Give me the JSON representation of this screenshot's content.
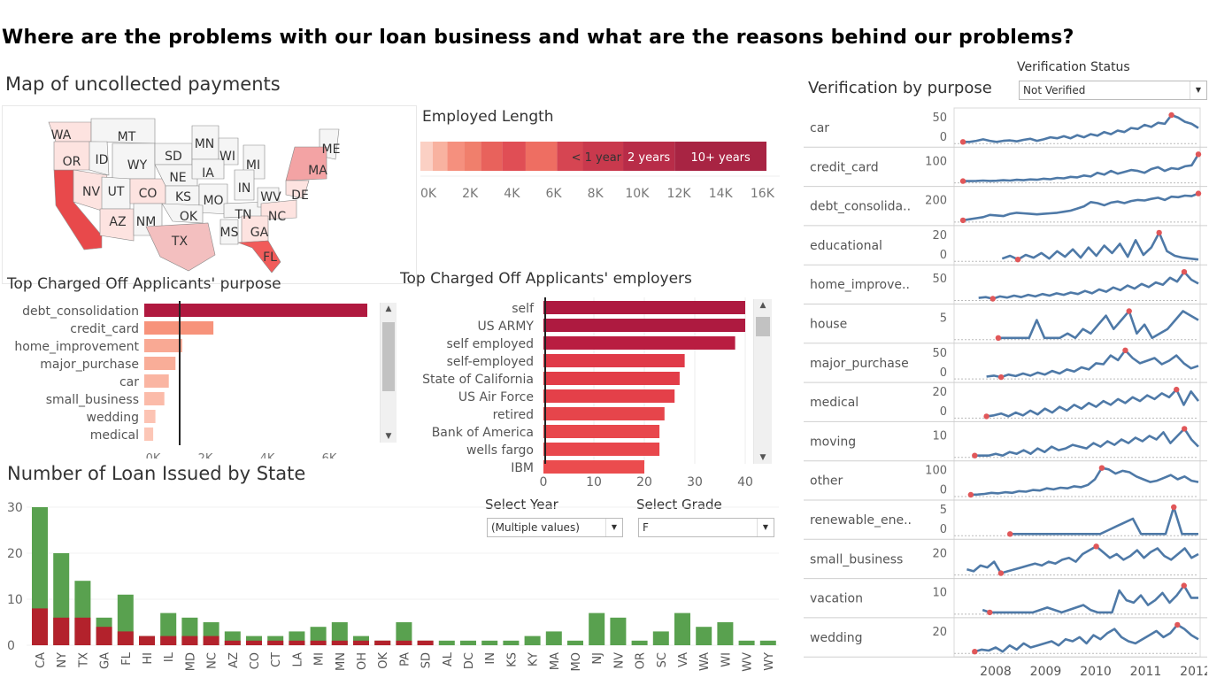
{
  "title": "Where are the problems with our loan business and what are the reasons behind our problems?",
  "map": {
    "title": "Map of uncollected payments",
    "state_labels": [
      "WA",
      "MT",
      "OR",
      "ID",
      "WY",
      "SD",
      "MN",
      "WI",
      "MI",
      "ME",
      "NV",
      "UT",
      "CO",
      "NE",
      "IA",
      "MA",
      "DE",
      "KS",
      "MO",
      "IN",
      "AZ",
      "NM",
      "OK",
      "TN",
      "WV",
      "NC",
      "TX",
      "MS",
      "GA",
      "FL"
    ]
  },
  "employed": {
    "title": "Employed Length",
    "visible_labels": [
      "< 1 year",
      "2 years",
      "10+ years"
    ],
    "axis_ticks": [
      "0K",
      "2K",
      "4K",
      "6K",
      "8K",
      "10K",
      "12K",
      "14K",
      "16K"
    ],
    "colors": [
      "#fbd0c4",
      "#f8b2a0",
      "#f5907e",
      "#f07f6c",
      "#e8625c",
      "#e04e55",
      "#ee6e62",
      "#d64552",
      "#c9394d",
      "#b82c48",
      "#a82443"
    ]
  },
  "purpose": {
    "title": "Top Charged Off Applicants' purpose",
    "categories": [
      "debt_consolidation",
      "credit_card",
      "home_improvement",
      "major_purchase",
      "car",
      "small_business",
      "wedding",
      "medical"
    ],
    "values": [
      1,
      0.31,
      0.17,
      0.14,
      0.11,
      0.09,
      0.05,
      0.04
    ],
    "colors": [
      "#b0193f",
      "#f7937b",
      "#f9a994",
      "#f9ad98",
      "#fab5a2",
      "#fbbba9",
      "#fcc3b3",
      "#fcc6b6"
    ],
    "axis_ticks": [
      "0K",
      "2K",
      "4K",
      "6K"
    ]
  },
  "employers": {
    "title": "Top Charged Off Applicants' employers",
    "categories": [
      "self",
      "US ARMY",
      "self employed",
      "self-employed",
      "State of California",
      "US Air Force",
      "retired",
      "Bank of America",
      "wells fargo",
      "IBM"
    ],
    "values": [
      40,
      40,
      38,
      28,
      27,
      26,
      24,
      23,
      23,
      20
    ],
    "colors": [
      "#ae1a40",
      "#ae1a40",
      "#b91d41",
      "#e03a48",
      "#e23d48",
      "#e44049",
      "#e6454b",
      "#e8474c",
      "#e8474c",
      "#eb4c4e"
    ],
    "axis_ticks": [
      "0",
      "10",
      "20",
      "30",
      "40"
    ]
  },
  "states": {
    "title": "Number of Loan Issued by State",
    "select_year_label": "Select Year",
    "select_year_value": "(Multiple values)",
    "select_grade_label": "Select Grade",
    "select_grade_value": "F",
    "y_ticks": [
      "30",
      "20",
      "10",
      "0"
    ],
    "colors": {
      "total": "#59a14f",
      "charged_off": "#b3222c"
    }
  },
  "chart_data": [
    {
      "type": "bar",
      "title": "Number of Loan Issued by State",
      "categories": [
        "CA",
        "NY",
        "TX",
        "GA",
        "FL",
        "HI",
        "IL",
        "MD",
        "NC",
        "AZ",
        "CO",
        "CT",
        "LA",
        "MI",
        "MN",
        "OH",
        "OK",
        "PA",
        "SD",
        "AL",
        "DC",
        "IN",
        "KS",
        "KY",
        "MA",
        "MO",
        "NJ",
        "NV",
        "OR",
        "SC",
        "VA",
        "WA",
        "WI",
        "WV",
        "WY"
      ],
      "series": [
        {
          "values": [
            30,
            20,
            14,
            6,
            11,
            2,
            7,
            6,
            5,
            3,
            2,
            2,
            3,
            4,
            5,
            2,
            1,
            5,
            1,
            1,
            1,
            1,
            1,
            2,
            3,
            1,
            7,
            6,
            1,
            3,
            7,
            4,
            5,
            1,
            1
          ]
        },
        {
          "values": [
            8,
            6,
            6,
            4,
            3,
            2,
            2,
            2,
            2,
            1,
            1,
            1,
            1,
            1,
            1,
            1,
            1,
            1,
            1,
            0,
            0,
            0,
            0,
            0,
            0,
            0,
            0,
            0,
            0,
            0,
            0,
            0,
            0,
            0,
            0
          ]
        }
      ],
      "ylim": [
        0,
        30
      ]
    },
    {
      "type": "bar",
      "title": "Top Charged Off Applicants' employers",
      "categories": [
        "self",
        "US ARMY",
        "self employed",
        "self-employed",
        "State of California",
        "US Air Force",
        "retired",
        "Bank of America",
        "wells fargo",
        "IBM"
      ],
      "values": [
        40,
        40,
        38,
        28,
        27,
        26,
        24,
        23,
        23,
        20
      ],
      "xlim": [
        0,
        40
      ]
    },
    {
      "type": "line",
      "title": "Verification by purpose",
      "x_ticks": [
        "2008",
        "2009",
        "2010",
        "2011",
        "2012"
      ],
      "series": [
        {
          "name": "car",
          "axis": [
            "50",
            "0"
          ],
          "values": [
            3,
            3,
            5,
            8,
            5,
            3,
            5,
            6,
            4,
            7,
            9,
            5,
            8,
            12,
            10,
            14,
            10,
            16,
            12,
            18,
            15,
            22,
            18,
            25,
            22,
            30,
            28,
            36,
            32,
            40,
            38,
            55,
            50,
            42,
            38,
            30
          ]
        },
        {
          "name": "credit_card",
          "axis": [
            "100"
          ],
          "values": [
            5,
            5,
            6,
            8,
            6,
            7,
            10,
            8,
            12,
            10,
            14,
            12,
            18,
            15,
            22,
            20,
            28,
            25,
            35,
            30,
            50,
            40,
            60,
            45,
            55,
            65,
            60,
            50,
            70,
            80,
            60,
            75,
            70,
            85,
            90,
            150
          ]
        },
        {
          "name": "debt_consolida..",
          "axis": [
            "200"
          ],
          "values": [
            10,
            20,
            30,
            40,
            60,
            55,
            50,
            70,
            80,
            75,
            70,
            65,
            70,
            75,
            80,
            90,
            100,
            120,
            140,
            180,
            170,
            150,
            175,
            185,
            170,
            190,
            200,
            195,
            210,
            220,
            200,
            230,
            225,
            240,
            235,
            260
          ]
        },
        {
          "name": "educational",
          "axis": [
            "20",
            "0"
          ],
          "values": [
            2,
            5,
            1,
            6,
            3,
            8,
            2,
            10,
            4,
            12,
            3,
            14,
            5,
            16,
            8,
            18,
            4,
            22,
            6,
            14,
            30,
            10,
            5,
            3,
            2,
            1
          ]
        },
        {
          "name": "home_improve..",
          "axis": [
            "50"
          ],
          "values": [
            8,
            10,
            6,
            12,
            9,
            14,
            10,
            16,
            12,
            18,
            14,
            20,
            16,
            22,
            18,
            26,
            20,
            30,
            24,
            35,
            28,
            40,
            32,
            44,
            36,
            48,
            42,
            60,
            50,
            75,
            55,
            45
          ]
        },
        {
          "name": "house",
          "axis": [
            "5"
          ],
          "values": [
            1,
            1,
            1,
            1,
            1,
            5,
            1,
            1,
            1,
            2,
            1,
            3,
            2,
            4,
            6,
            3,
            5,
            7,
            2,
            4,
            1,
            2,
            3,
            5,
            7,
            6,
            5
          ]
        },
        {
          "name": "major_purchase",
          "axis": [
            "50",
            "0"
          ],
          "values": [
            4,
            6,
            3,
            8,
            5,
            10,
            6,
            12,
            8,
            15,
            10,
            18,
            14,
            22,
            18,
            30,
            28,
            45,
            36,
            55,
            40,
            30,
            35,
            40,
            28,
            35,
            45,
            30,
            20,
            25
          ]
        },
        {
          "name": "medical",
          "axis": [
            "20",
            "0"
          ],
          "values": [
            2,
            3,
            5,
            2,
            6,
            3,
            8,
            4,
            10,
            6,
            12,
            8,
            14,
            10,
            16,
            12,
            18,
            14,
            20,
            16,
            22,
            18,
            24,
            20,
            26,
            22,
            30,
            14,
            28,
            18
          ]
        },
        {
          "name": "moving",
          "axis": [
            "10"
          ],
          "values": [
            1,
            1,
            1,
            2,
            1,
            3,
            2,
            4,
            2,
            5,
            3,
            6,
            4,
            5,
            7,
            6,
            5,
            8,
            6,
            9,
            7,
            10,
            8,
            11,
            9,
            12,
            10,
            14,
            8,
            12,
            16,
            10,
            6
          ]
        },
        {
          "name": "other",
          "axis": [
            "100",
            "0"
          ],
          "values": [
            5,
            6,
            8,
            12,
            10,
            14,
            12,
            18,
            16,
            22,
            20,
            28,
            24,
            30,
            28,
            35,
            32,
            40,
            60,
            100,
            95,
            80,
            90,
            85,
            70,
            60,
            50,
            55,
            65,
            75,
            60,
            70,
            55,
            50
          ]
        },
        {
          "name": "renewable_ene..",
          "axis": [
            "5",
            "0"
          ],
          "values": [
            1,
            1,
            1,
            1,
            1,
            1,
            1,
            1,
            1,
            1,
            1,
            1,
            2,
            3,
            4,
            5,
            1,
            1,
            1,
            1,
            8,
            1,
            1,
            1
          ]
        },
        {
          "name": "small_business",
          "axis": [
            "20"
          ],
          "values": [
            8,
            6,
            12,
            10,
            16,
            4,
            6,
            8,
            10,
            12,
            14,
            12,
            16,
            14,
            18,
            20,
            16,
            24,
            28,
            32,
            26,
            20,
            24,
            18,
            22,
            28,
            20,
            26,
            30,
            22,
            18,
            24,
            30,
            20,
            24
          ]
        },
        {
          "name": "vacation",
          "axis": [
            "10"
          ],
          "values": [
            2,
            1,
            1,
            1,
            1,
            1,
            1,
            1,
            2,
            3,
            2,
            1,
            2,
            3,
            4,
            2,
            1,
            1,
            1,
            10,
            6,
            5,
            8,
            4,
            6,
            9,
            5,
            8,
            12,
            7,
            7
          ]
        },
        {
          "name": "wedding",
          "axis": [
            "20"
          ],
          "values": [
            2,
            4,
            3,
            6,
            2,
            8,
            4,
            10,
            6,
            8,
            10,
            12,
            8,
            14,
            12,
            16,
            10,
            18,
            14,
            20,
            24,
            16,
            12,
            10,
            14,
            18,
            22,
            16,
            20,
            28,
            24,
            18,
            14
          ]
        }
      ]
    }
  ],
  "verification": {
    "title": "Verification by purpose",
    "status_label": "Verification Status",
    "status_value": "Not Verified",
    "x_ticks": [
      "2008",
      "2009",
      "2010",
      "2011",
      "2012"
    ]
  }
}
